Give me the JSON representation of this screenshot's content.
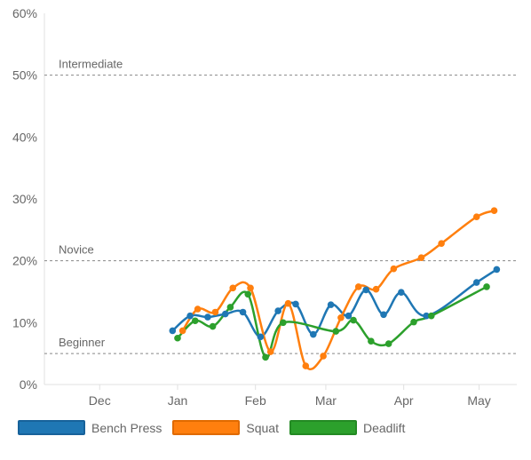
{
  "chart_data": {
    "type": "line",
    "title": "",
    "xlabel": "",
    "ylabel": "",
    "ylim": [
      0,
      60
    ],
    "yticks": [
      "0%",
      "10%",
      "20%",
      "30%",
      "40%",
      "50%",
      "60%"
    ],
    "xticks": [
      {
        "label": "Dec",
        "date": "2017-12-01"
      },
      {
        "label": "Jan",
        "date": "2018-01-01"
      },
      {
        "label": "Feb",
        "date": "2018-02-01"
      },
      {
        "label": "Mar",
        "date": "2018-03-01"
      },
      {
        "label": "Apr",
        "date": "2018-04-01"
      },
      {
        "label": "May",
        "date": "2018-05-01"
      }
    ],
    "xlim": [
      "2017-11-09",
      "2018-05-16"
    ],
    "grid": false,
    "legend": "bottom-left",
    "reference_lines": [
      {
        "label": "Intermediate",
        "value": 50
      },
      {
        "label": "Novice",
        "value": 20
      },
      {
        "label": "Beginner",
        "value": 5
      }
    ],
    "series": [
      {
        "name": "Bench Press",
        "color": "#1f77b4",
        "points": [
          {
            "x": "2017-12-30",
            "y": 8.7
          },
          {
            "x": "2018-01-06",
            "y": 11.1
          },
          {
            "x": "2018-01-13",
            "y": 10.9
          },
          {
            "x": "2018-01-20",
            "y": 11.4
          },
          {
            "x": "2018-01-27",
            "y": 11.7
          },
          {
            "x": "2018-02-03",
            "y": 7.7
          },
          {
            "x": "2018-02-10",
            "y": 11.9
          },
          {
            "x": "2018-02-17",
            "y": 13.0
          },
          {
            "x": "2018-02-24",
            "y": 8.1
          },
          {
            "x": "2018-03-03",
            "y": 12.9
          },
          {
            "x": "2018-03-10",
            "y": 11.1
          },
          {
            "x": "2018-03-17",
            "y": 15.3
          },
          {
            "x": "2018-03-24",
            "y": 11.3
          },
          {
            "x": "2018-03-31",
            "y": 14.9
          },
          {
            "x": "2018-04-10",
            "y": 11.1
          },
          {
            "x": "2018-04-30",
            "y": 16.5
          },
          {
            "x": "2018-05-08",
            "y": 18.6
          }
        ]
      },
      {
        "name": "Squat",
        "color": "#ff7f0e",
        "points": [
          {
            "x": "2018-01-03",
            "y": 8.7
          },
          {
            "x": "2018-01-09",
            "y": 12.2
          },
          {
            "x": "2018-01-16",
            "y": 11.7
          },
          {
            "x": "2018-01-23",
            "y": 15.6
          },
          {
            "x": "2018-01-30",
            "y": 15.6
          },
          {
            "x": "2018-02-07",
            "y": 5.3
          },
          {
            "x": "2018-02-14",
            "y": 13.1
          },
          {
            "x": "2018-02-21",
            "y": 3.0
          },
          {
            "x": "2018-02-28",
            "y": 4.6
          },
          {
            "x": "2018-03-07",
            "y": 10.8
          },
          {
            "x": "2018-03-14",
            "y": 15.8
          },
          {
            "x": "2018-03-21",
            "y": 15.4
          },
          {
            "x": "2018-03-28",
            "y": 18.7
          },
          {
            "x": "2018-04-08",
            "y": 20.5
          },
          {
            "x": "2018-04-16",
            "y": 22.8
          },
          {
            "x": "2018-04-30",
            "y": 27.1
          },
          {
            "x": "2018-05-07",
            "y": 28.1
          }
        ]
      },
      {
        "name": "Deadlift",
        "color": "#2ca02c",
        "points": [
          {
            "x": "2018-01-01",
            "y": 7.5
          },
          {
            "x": "2018-01-08",
            "y": 10.3
          },
          {
            "x": "2018-01-15",
            "y": 9.4
          },
          {
            "x": "2018-01-22",
            "y": 12.5
          },
          {
            "x": "2018-01-29",
            "y": 14.6
          },
          {
            "x": "2018-02-05",
            "y": 4.4
          },
          {
            "x": "2018-02-12",
            "y": 10.0
          },
          {
            "x": "2018-03-05",
            "y": 8.6
          },
          {
            "x": "2018-03-12",
            "y": 10.4
          },
          {
            "x": "2018-03-19",
            "y": 7.0
          },
          {
            "x": "2018-03-26",
            "y": 6.6
          },
          {
            "x": "2018-04-05",
            "y": 10.1
          },
          {
            "x": "2018-04-12",
            "y": 11.1
          },
          {
            "x": "2018-05-04",
            "y": 15.8
          }
        ]
      }
    ]
  }
}
